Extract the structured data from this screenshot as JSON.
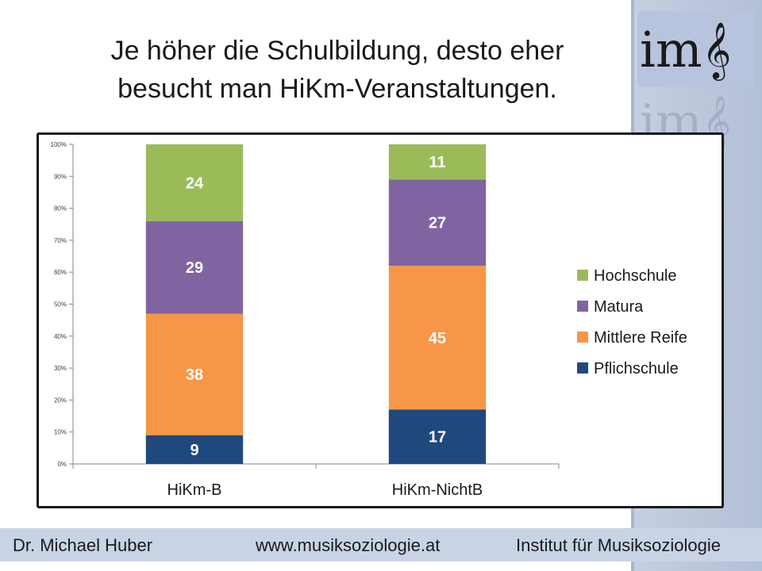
{
  "slide": {
    "title_line1": "Je höher die Schulbildung, desto eher",
    "title_line2": "besucht man HiKm-Veranstaltungen.",
    "logo_text": "im",
    "logo_symbol": "𝄞"
  },
  "footer": {
    "author": "Dr. Michael Huber",
    "website": "www.musiksoziologie.at",
    "institute": "Institut für Musiksoziologie"
  },
  "chart_data": {
    "type": "bar",
    "stacked": true,
    "normalized": true,
    "categories": [
      "HiKm-B",
      "HiKm-NichtB"
    ],
    "series": [
      {
        "name": "Pflichschule",
        "values": [
          9,
          17
        ],
        "color": "#1f497d"
      },
      {
        "name": "Mittlere Reife",
        "values": [
          38,
          45
        ],
        "color": "#f79646"
      },
      {
        "name": "Matura",
        "values": [
          29,
          27
        ],
        "color": "#8064a2"
      },
      {
        "name": "Hochschule",
        "values": [
          24,
          11
        ],
        "color": "#9bbb59"
      }
    ],
    "yticks": [
      "0%",
      "10%",
      "20%",
      "30%",
      "40%",
      "50%",
      "60%",
      "70%",
      "80%",
      "90%",
      "100%"
    ],
    "ylim": [
      0,
      100
    ],
    "legend_position": "right",
    "grid": false
  }
}
